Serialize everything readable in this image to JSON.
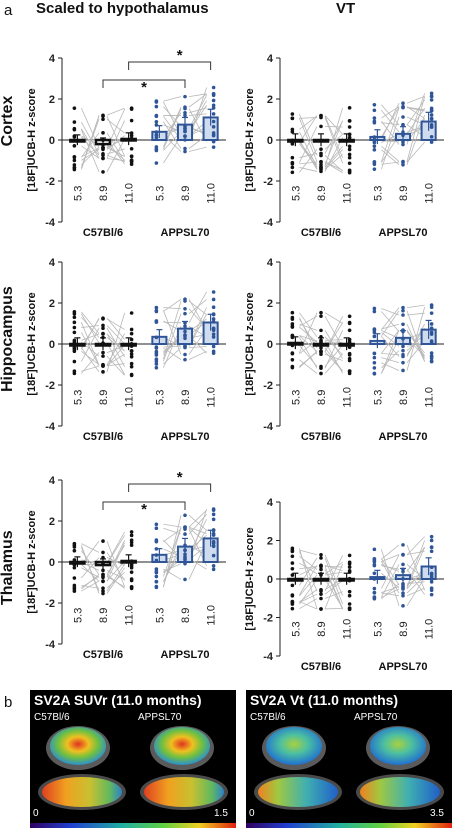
{
  "panel_a_label": "a",
  "panel_b_label": "b",
  "column_titles": [
    "Scaled to hypothalamus",
    "VT"
  ],
  "row_titles": [
    "Cortex",
    "Hippocampus",
    "Thalamus"
  ],
  "colors": {
    "c57_series": "#111111",
    "appsl_series": "#2f5597",
    "appsl_bar_fill": "#cfdcef",
    "line_color": "#b8b8b8"
  },
  "chart_data": [
    {
      "type": "bar",
      "id": "cortex-scaled",
      "ylabel": "[18F]UCB-H z-score",
      "ylim": [
        -4,
        4
      ],
      "yticks": [
        -4,
        -2,
        0,
        2,
        4
      ],
      "groups": [
        "C57Bl/6",
        "APPSL70"
      ],
      "categories": [
        "5.3",
        "8.9",
        "11.0"
      ],
      "series": [
        {
          "name": "C57Bl/6",
          "values": [
            0.0,
            -0.2,
            0.05
          ],
          "errors": [
            0.25,
            0.3,
            0.3
          ]
        },
        {
          "name": "APPSL70",
          "values": [
            0.4,
            0.75,
            1.1
          ],
          "errors": [
            0.3,
            0.35,
            0.4
          ]
        }
      ],
      "annotations": [
        "*",
        "*"
      ]
    },
    {
      "type": "bar",
      "id": "cortex-vt",
      "ylabel": "[18F]UCB-H z-score",
      "ylim": [
        -4,
        4
      ],
      "yticks": [
        -4,
        -2,
        0,
        2,
        4
      ],
      "groups": [
        "C57Bl/6",
        "APPSL70"
      ],
      "categories": [
        "5.3",
        "8.9",
        "11.0"
      ],
      "series": [
        {
          "name": "C57Bl/6",
          "values": [
            0.0,
            0.0,
            0.0
          ],
          "errors": [
            0.3,
            0.3,
            0.3
          ]
        },
        {
          "name": "APPSL70",
          "values": [
            0.15,
            0.3,
            0.9
          ],
          "errors": [
            0.35,
            0.35,
            0.45
          ]
        }
      ],
      "annotations": []
    },
    {
      "type": "bar",
      "id": "hippocampus-scaled",
      "ylabel": "[18F]UCB-H z-score",
      "ylim": [
        -4,
        4
      ],
      "yticks": [
        -4,
        -2,
        0,
        2,
        4
      ],
      "groups": [
        "C57Bl/6",
        "APPSL70"
      ],
      "categories": [
        "5.3",
        "8.9",
        "11.0"
      ],
      "series": [
        {
          "name": "C57Bl/6",
          "values": [
            0.0,
            0.0,
            0.0
          ],
          "errors": [
            0.3,
            0.3,
            0.3
          ]
        },
        {
          "name": "APPSL70",
          "values": [
            0.35,
            0.75,
            1.05
          ],
          "errors": [
            0.35,
            0.35,
            0.4
          ]
        }
      ],
      "annotations": []
    },
    {
      "type": "bar",
      "id": "hippocampus-vt",
      "ylabel": "[18F]UCB-H z-score",
      "ylim": [
        -4,
        4
      ],
      "yticks": [
        -4,
        -2,
        0,
        2,
        4
      ],
      "groups": [
        "C57Bl/6",
        "APPSL70"
      ],
      "categories": [
        "5.3",
        "8.9",
        "11.0"
      ],
      "series": [
        {
          "name": "C57Bl/6",
          "values": [
            0.05,
            0.0,
            0.0
          ],
          "errors": [
            0.3,
            0.3,
            0.3
          ]
        },
        {
          "name": "APPSL70",
          "values": [
            0.15,
            0.3,
            0.7
          ],
          "errors": [
            0.35,
            0.35,
            0.45
          ]
        }
      ],
      "annotations": []
    },
    {
      "type": "bar",
      "id": "thalamus-scaled",
      "ylabel": "[18F]UCB-H z-score",
      "ylim": [
        -4,
        4
      ],
      "yticks": [
        -4,
        -2,
        0,
        2,
        4
      ],
      "groups": [
        "C57Bl/6",
        "APPSL70"
      ],
      "categories": [
        "5.3",
        "8.9",
        "11.0"
      ],
      "series": [
        {
          "name": "C57Bl/6",
          "values": [
            0.0,
            -0.15,
            0.05
          ],
          "errors": [
            0.25,
            0.3,
            0.3
          ]
        },
        {
          "name": "APPSL70",
          "values": [
            0.35,
            0.75,
            1.15
          ],
          "errors": [
            0.3,
            0.4,
            0.4
          ]
        }
      ],
      "annotations": [
        "*",
        "*"
      ]
    },
    {
      "type": "bar",
      "id": "thalamus-vt",
      "ylabel": "[18F]UCB-H z-score",
      "ylim": [
        -4,
        4
      ],
      "yticks": [
        -4,
        -2,
        0,
        2,
        4
      ],
      "groups": [
        "C57Bl/6",
        "APPSL70"
      ],
      "categories": [
        "5.3",
        "8.9",
        "11.0"
      ],
      "series": [
        {
          "name": "C57Bl/6",
          "values": [
            0.0,
            0.0,
            0.0
          ],
          "errors": [
            0.3,
            0.3,
            0.3
          ]
        },
        {
          "name": "APPSL70",
          "values": [
            0.1,
            0.2,
            0.65
          ],
          "errors": [
            0.35,
            0.35,
            0.45
          ]
        }
      ],
      "annotations": []
    }
  ],
  "brain_panels": [
    {
      "title": "SV2A SUVr (11.0 months)",
      "left_label": "C57Bl/6",
      "right_label": "APPSL70",
      "scale_min": "0",
      "scale_max": "1.5"
    },
    {
      "title": "SV2A Vt (11.0 months)",
      "left_label": "C57Bl/6",
      "right_label": "APPSL70",
      "scale_min": "0",
      "scale_max": "3.5"
    }
  ]
}
